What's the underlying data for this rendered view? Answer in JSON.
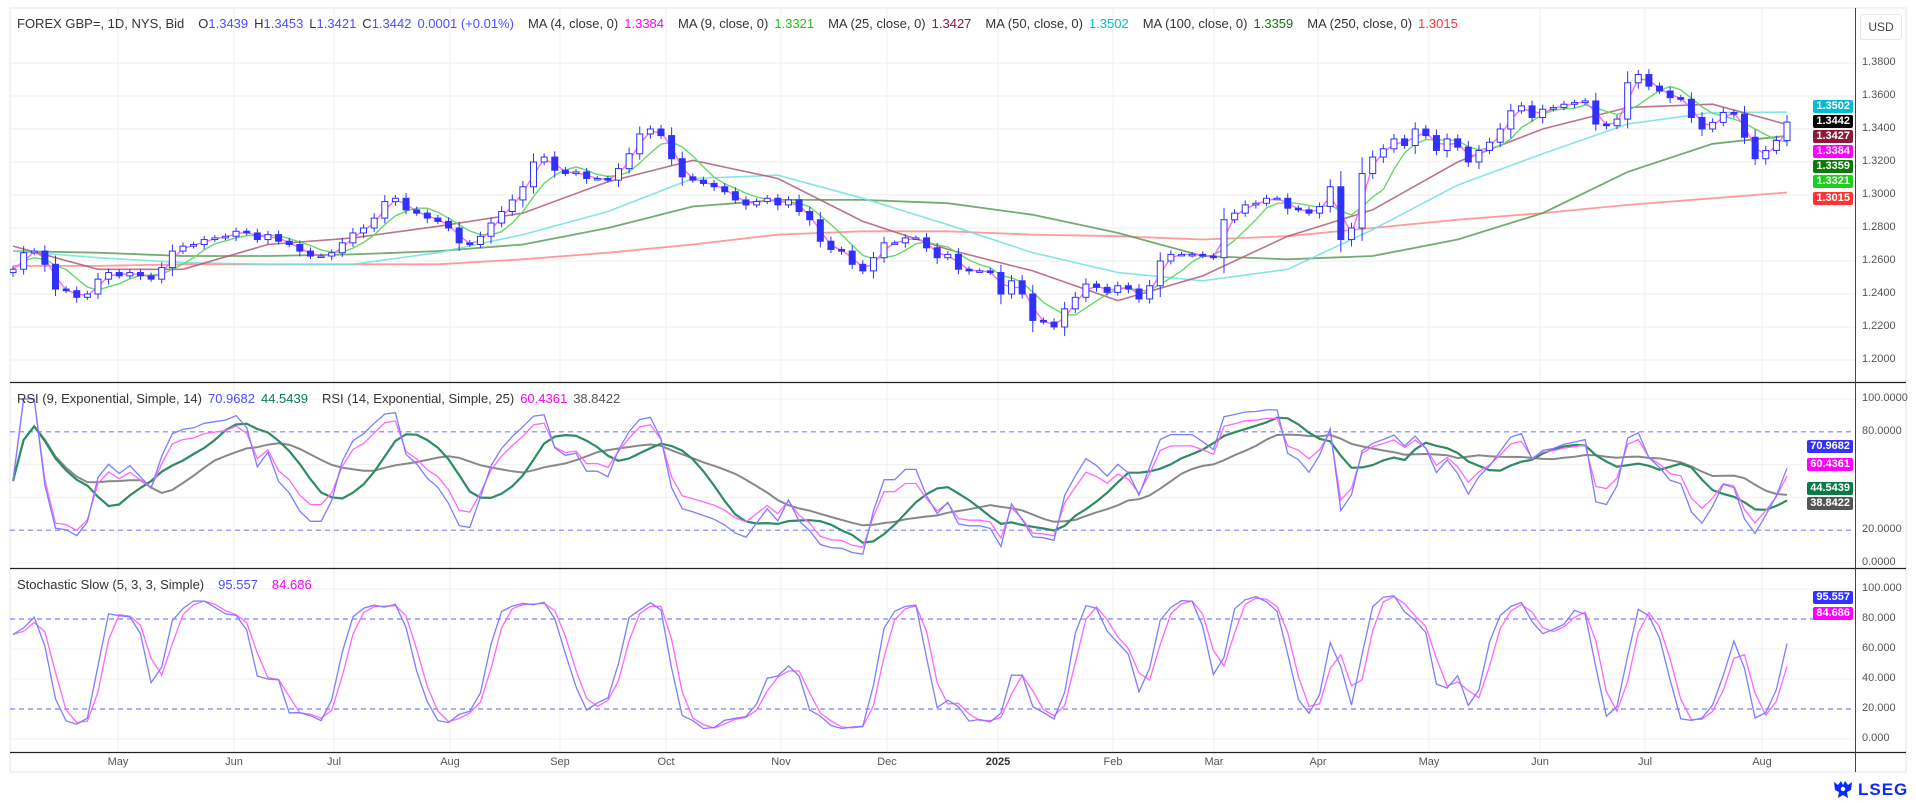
{
  "header": {
    "symbol": "FOREX GBP=, 1D, NYS, Bid",
    "o_label": "O",
    "o": "1.3439",
    "h_label": "H",
    "h": "1.3453",
    "l_label": "L",
    "l": "1.3421",
    "c_label": "C",
    "c": "1.3442",
    "change": "0.0001 (+0.01%)"
  },
  "mas": [
    {
      "label": "MA (4, close, 0)",
      "value": "1.3384",
      "color": "#ff00ff"
    },
    {
      "label": "MA (9, close, 0)",
      "value": "1.3321",
      "color": "#1fbf1f"
    },
    {
      "label": "MA (25, close, 0)",
      "value": "1.3427",
      "color": "#8b1a3a"
    },
    {
      "label": "MA (50, close, 0)",
      "value": "1.3502",
      "color": "#00bcd4"
    },
    {
      "label": "MA (100, close, 0)",
      "value": "1.3359",
      "color": "#0a7a0a"
    },
    {
      "label": "MA (250, close, 0)",
      "value": "1.3015",
      "color": "#ff3333"
    }
  ],
  "currency": "USD",
  "price_axis": [
    "1.3800",
    "1.3600",
    "1.3400",
    "1.3200",
    "1.3000",
    "1.2800",
    "1.2600",
    "1.2400",
    "1.2200",
    "1.2000"
  ],
  "price_tags": [
    {
      "value": "1.3502",
      "color": "#00bcd4"
    },
    {
      "value": "1.3442",
      "color": "#000000"
    },
    {
      "value": "1.3427",
      "color": "#8b1a3a"
    },
    {
      "value": "1.3384",
      "color": "#ff00ff"
    },
    {
      "value": "1.3359",
      "color": "#0a7a0a"
    },
    {
      "value": "1.3321",
      "color": "#1fcf1f"
    },
    {
      "value": "1.3015",
      "color": "#ff3333"
    }
  ],
  "rsi": {
    "legend": [
      {
        "label": "RSI (9, Exponential, Simple, 14)",
        "v1": "70.9682",
        "v2": "44.5439",
        "c1": "#4d4dff",
        "c2": "#0b7a4a"
      },
      {
        "label": "RSI (14, Exponential, Simple, 25)",
        "v1": "60.4361",
        "v2": "38.8422",
        "c1": "#ff00ff",
        "c2": "#555555"
      }
    ],
    "axis": [
      "100.0000",
      "80.0000",
      "20.0000",
      "0.0000"
    ],
    "levels": [
      80,
      20
    ],
    "tags": [
      {
        "value": "70.9682",
        "color": "#3333ff"
      },
      {
        "value": "60.4361",
        "color": "#ff00ff"
      },
      {
        "value": "44.5439",
        "color": "#0b7a4a"
      },
      {
        "value": "38.8422",
        "color": "#555555"
      }
    ]
  },
  "stoch": {
    "legend": {
      "label": "Stochastic Slow (5, 3, 3, Simple)",
      "v1": "95.557",
      "v2": "84.686",
      "c1": "#4d4dff",
      "c2": "#ff00ff"
    },
    "axis": [
      "100.000",
      "80.000",
      "60.000",
      "40.000",
      "20.000",
      "0.000"
    ],
    "levels": [
      80,
      20
    ],
    "tags": [
      {
        "value": "95.557",
        "color": "#3333ff"
      },
      {
        "value": "84.686",
        "color": "#ff00ff"
      }
    ]
  },
  "time_axis": [
    "May",
    "Jun",
    "Jul",
    "Aug",
    "Sep",
    "Oct",
    "Nov",
    "Dec",
    "2025",
    "Feb",
    "Mar",
    "Apr",
    "May",
    "Jun",
    "Jul",
    "Aug"
  ],
  "brand": "LSEG",
  "chart_data": {
    "type": "candlestick",
    "title": "FOREX GBP=, 1D, NYS, Bid",
    "ylim": [
      1.19,
      1.39
    ],
    "grid": true,
    "closes": [
      1.255,
      1.265,
      1.266,
      1.258,
      1.243,
      1.242,
      1.238,
      1.24,
      1.249,
      1.253,
      1.251,
      1.253,
      1.251,
      1.249,
      1.256,
      1.266,
      1.269,
      1.27,
      1.273,
      1.274,
      1.275,
      1.278,
      1.277,
      1.273,
      1.276,
      1.272,
      1.27,
      1.266,
      1.263,
      1.263,
      1.265,
      1.271,
      1.277,
      1.28,
      1.286,
      1.296,
      1.298,
      1.291,
      1.289,
      1.286,
      1.284,
      1.28,
      1.271,
      1.27,
      1.275,
      1.283,
      1.29,
      1.297,
      1.305,
      1.32,
      1.323,
      1.315,
      1.313,
      1.314,
      1.31,
      1.31,
      1.309,
      1.316,
      1.325,
      1.337,
      1.34,
      1.336,
      1.322,
      1.311,
      1.309,
      1.307,
      1.305,
      1.302,
      1.297,
      1.294,
      1.296,
      1.298,
      1.294,
      1.297,
      1.29,
      1.285,
      1.272,
      1.267,
      1.266,
      1.258,
      1.254,
      1.262,
      1.271,
      1.271,
      1.274,
      1.274,
      1.268,
      1.262,
      1.264,
      1.255,
      1.254,
      1.254,
      1.253,
      1.24,
      1.248,
      1.24,
      1.224,
      1.223,
      1.22,
      1.231,
      1.238,
      1.246,
      1.244,
      1.241,
      1.245,
      1.243,
      1.237,
      1.245,
      1.26,
      1.264,
      1.264,
      1.264,
      1.263,
      1.262,
      1.285,
      1.289,
      1.294,
      1.295,
      1.298,
      1.298,
      1.292,
      1.291,
      1.289,
      1.293,
      1.305,
      1.273,
      1.28,
      1.313,
      1.323,
      1.328,
      1.334,
      1.33,
      1.34,
      1.336,
      1.327,
      1.334,
      1.329,
      1.32,
      1.327,
      1.332,
      1.34,
      1.351,
      1.354,
      1.347,
      1.352,
      1.353,
      1.355,
      1.356,
      1.357,
      1.343,
      1.342,
      1.346,
      1.368,
      1.373,
      1.366,
      1.363,
      1.359,
      1.358,
      1.347,
      1.34,
      1.344,
      1.35,
      1.349,
      1.335,
      1.322,
      1.327,
      1.333,
      1.3442
    ],
    "ma_series": {
      "ma25": [
        1.269,
        1.255,
        1.255,
        1.27,
        1.274,
        1.281,
        1.289,
        1.308,
        1.321,
        1.31,
        1.284,
        1.267,
        1.254,
        1.236,
        1.251,
        1.275,
        1.291,
        1.32,
        1.34,
        1.353,
        1.355,
        1.3427
      ],
      "ma50": [
        1.266,
        1.262,
        1.259,
        1.258,
        1.258,
        1.265,
        1.276,
        1.29,
        1.31,
        1.312,
        1.298,
        1.282,
        1.265,
        1.253,
        1.248,
        1.255,
        1.279,
        1.306,
        1.325,
        1.343,
        1.35,
        1.3502
      ],
      "ma100": [
        1.266,
        1.265,
        1.263,
        1.263,
        1.264,
        1.266,
        1.27,
        1.28,
        1.293,
        1.297,
        1.297,
        1.295,
        1.288,
        1.277,
        1.263,
        1.261,
        1.263,
        1.273,
        1.289,
        1.314,
        1.331,
        1.3359
      ],
      "ma250": [
        1.257,
        1.257,
        1.258,
        1.258,
        1.258,
        1.258,
        1.261,
        1.265,
        1.27,
        1.276,
        1.278,
        1.278,
        1.276,
        1.275,
        1.273,
        1.275,
        1.28,
        1.285,
        1.289,
        1.294,
        1.298,
        1.3015
      ]
    },
    "line_colors": {
      "ma4": "#ff66ff",
      "ma9": "#66d966",
      "ma25": "#b05a78",
      "ma50": "#6ee0e0",
      "ma100": "#5a9e5a",
      "ma250": "#ff8a8a",
      "candle": "#3030ff",
      "rsi_fast": "#7d7dff",
      "rsi_fast_signal": "#2e8b62",
      "rsi_slow": "#ff66ff",
      "rsi_slow_signal": "#888888",
      "stoch_k": "#7d7dff",
      "stoch_d": "#ff66ff",
      "levels": "#7f7fff"
    }
  }
}
